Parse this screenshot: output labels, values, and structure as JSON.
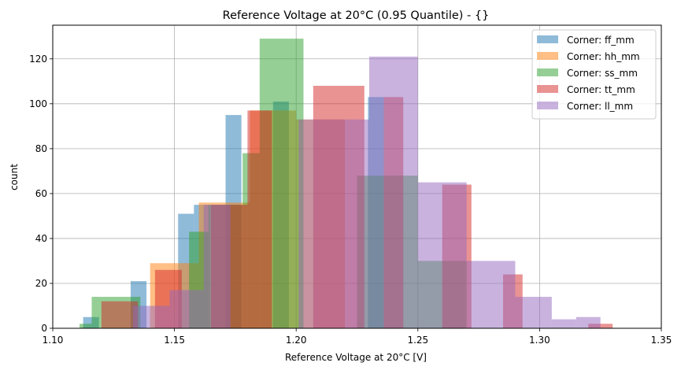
{
  "chart_data": {
    "type": "histogram",
    "title": "Reference Voltage at 20°C (0.95 Quantile) - {}",
    "xlabel": "Reference Voltage at 20°C [V]",
    "ylabel": "count",
    "xlim": [
      1.1,
      1.35
    ],
    "ylim": [
      0,
      135
    ],
    "xticks": [
      1.1,
      1.15,
      1.2,
      1.25,
      1.3,
      1.35
    ],
    "xtick_labels": [
      "1.10",
      "1.15",
      "1.20",
      "1.25",
      "1.30",
      "1.35"
    ],
    "yticks": [
      0,
      20,
      40,
      60,
      80,
      100,
      120
    ],
    "ytick_labels": [
      "0",
      "20",
      "40",
      "60",
      "80",
      "100",
      "120"
    ],
    "grid": true,
    "legend_position": "top-right",
    "series": [
      {
        "name": "Corner: ff_mm",
        "color": "#1f77b4",
        "bins": [
          1.1125,
          1.119,
          1.1255,
          1.132,
          1.1385,
          1.145,
          1.1515,
          1.158,
          1.1645,
          1.171,
          1.1775,
          1.184,
          1.1905,
          1.197,
          1.2035,
          1.21,
          1.2165,
          1.223,
          1.2295,
          1.236,
          1.2425,
          1.249
        ],
        "counts": [
          5,
          0,
          0,
          21,
          0,
          0,
          51,
          55,
          0,
          95,
          0,
          0,
          101,
          0,
          0,
          0,
          0,
          0,
          103,
          0,
          0
        ]
      },
      {
        "name": "Corner: hh_mm",
        "color": "#ff7f0e",
        "bins": [
          1.14,
          1.16,
          1.181,
          1.2,
          1.22
        ],
        "counts": [
          29,
          56,
          97,
          93
        ]
      },
      {
        "name": "Corner: ss_mm",
        "color": "#2ca02c",
        "bins": [
          1.111,
          1.116,
          1.136,
          1.156,
          1.164,
          1.178,
          1.185,
          1.203,
          1.225,
          1.25,
          1.27,
          1.29
        ],
        "counts": [
          2,
          14,
          0,
          43,
          55,
          78,
          129,
          0,
          68,
          30,
          0
        ]
      },
      {
        "name": "Corner: tt_mm",
        "color": "#d62728",
        "bins": [
          1.12,
          1.135,
          1.142,
          1.153,
          1.165,
          1.18,
          1.19,
          1.207,
          1.228,
          1.236,
          1.244,
          1.252,
          1.26,
          1.272,
          1.285,
          1.293,
          1.305,
          1.31,
          1.32,
          1.33,
          1.338
        ],
        "counts": [
          12,
          0,
          26,
          0,
          55,
          97,
          0,
          108,
          0,
          103,
          0,
          0,
          64,
          0,
          24,
          0,
          0,
          0,
          2,
          0
        ]
      },
      {
        "name": "Corner: ll_mm",
        "color": "#9467bd",
        "bins": [
          1.133,
          1.148,
          1.162,
          1.173,
          1.201,
          1.23,
          1.25,
          1.27,
          1.29,
          1.305,
          1.315,
          1.325
        ],
        "counts": [
          10,
          17,
          55,
          0,
          93,
          121,
          65,
          30,
          14,
          4,
          5
        ]
      }
    ]
  }
}
